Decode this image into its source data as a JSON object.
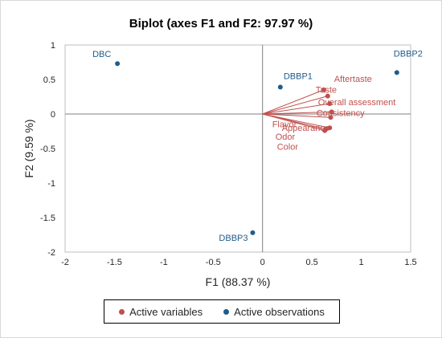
{
  "chart_data": {
    "type": "scatter",
    "title": "Biplot (axes F1 and F2: 97.97 %)",
    "xlabel": "F1 (88.37 %)",
    "ylabel": "F2 (9.59 %)",
    "xlim": [
      -2,
      1.5
    ],
    "ylim": [
      -2,
      1
    ],
    "xticks": [
      "-2",
      "-1.5",
      "-1",
      "-0.5",
      "0",
      "0.5",
      "1",
      "1.5"
    ],
    "yticks": [
      "1",
      "0.5",
      "0",
      "-0.5",
      "-1",
      "-1.5",
      "-2"
    ],
    "grid": false,
    "legend_position": "bottom",
    "legend": [
      {
        "label": "Active variables",
        "color": "#c0504d"
      },
      {
        "label": "Active observations",
        "color": "#1f5c8b"
      }
    ],
    "series": [
      {
        "name": "Active variables",
        "color": "#c0504d",
        "points": [
          {
            "label": "Aftertaste",
            "x": 0.62,
            "y": 0.35
          },
          {
            "label": "Taste",
            "x": 0.66,
            "y": 0.26
          },
          {
            "label": "Overall assessment",
            "x": 0.68,
            "y": 0.15
          },
          {
            "label": "Consistency",
            "x": 0.7,
            "y": 0.03
          },
          {
            "label": "Flavor",
            "x": 0.69,
            "y": -0.05
          },
          {
            "label": "Appearance",
            "x": 0.68,
            "y": -0.2
          },
          {
            "label": "Odor",
            "x": 0.64,
            "y": -0.22
          },
          {
            "label": "Color",
            "x": 0.63,
            "y": -0.24
          }
        ]
      },
      {
        "name": "Active observations",
        "color": "#1f5c8b",
        "points": [
          {
            "label": "DBC",
            "x": -1.47,
            "y": 0.73
          },
          {
            "label": "DBBP1",
            "x": 0.18,
            "y": 0.39
          },
          {
            "label": "DBBP2",
            "x": 1.36,
            "y": 0.6
          },
          {
            "label": "DBBP3",
            "x": -0.1,
            "y": -1.72
          }
        ]
      }
    ]
  }
}
